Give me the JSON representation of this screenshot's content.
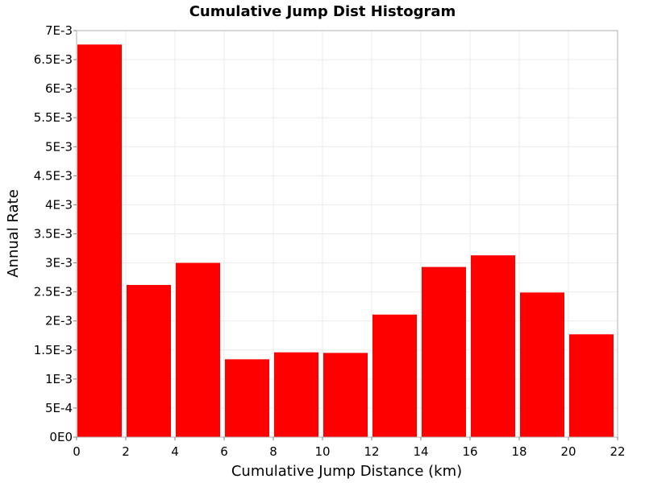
{
  "chart_data": {
    "type": "bar",
    "title": "Cumulative Jump Dist Histogram",
    "xlabel": "Cumulative Jump Distance (km)",
    "ylabel": "Annual Rate",
    "xlim": [
      0,
      22
    ],
    "ylim": [
      0,
      0.007
    ],
    "bin_width": 2,
    "x": [
      0,
      2,
      4,
      6,
      8,
      10,
      12,
      14,
      16,
      18,
      20
    ],
    "values": [
      0.00676,
      0.00262,
      0.003,
      0.00134,
      0.00146,
      0.00145,
      0.00211,
      0.00293,
      0.00313,
      0.00249,
      0.00177
    ],
    "x_ticks": [
      "0",
      "2",
      "4",
      "6",
      "8",
      "10",
      "12",
      "14",
      "16",
      "18",
      "20",
      "22"
    ],
    "y_ticks": [
      "0E0",
      "5E-4",
      "1E-3",
      "1.5E-3",
      "2E-3",
      "2.5E-3",
      "3E-3",
      "3.5E-3",
      "4E-3",
      "4.5E-3",
      "5E-3",
      "5.5E-3",
      "6E-3",
      "6.5E-3",
      "7E-3"
    ],
    "grid": true,
    "bar_color": "#ff0000",
    "grid_color": "#ebebeb"
  }
}
